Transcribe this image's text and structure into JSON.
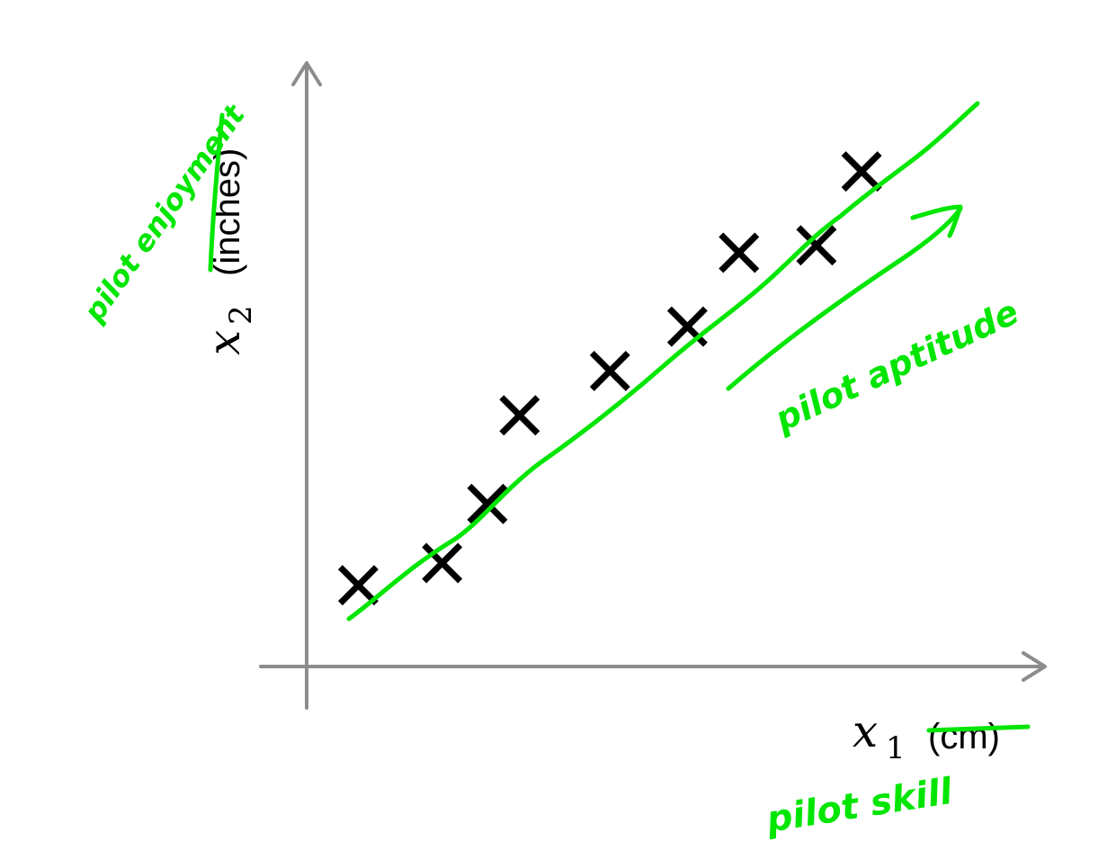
{
  "chart_data": {
    "type": "scatter",
    "title": "",
    "xlabel": {
      "var": "x",
      "sub": "1",
      "unit": "(cm)"
    },
    "ylabel": {
      "var": "x",
      "sub": "2",
      "unit": "(inches)"
    },
    "marker": "x",
    "grid": false,
    "legend": "none",
    "points": [
      {
        "x": 0.8,
        "y": 1.0
      },
      {
        "x": 2.1,
        "y": 1.3
      },
      {
        "x": 2.8,
        "y": 2.1
      },
      {
        "x": 3.3,
        "y": 3.3
      },
      {
        "x": 4.7,
        "y": 3.9
      },
      {
        "x": 5.9,
        "y": 4.5
      },
      {
        "x": 6.7,
        "y": 5.5
      },
      {
        "x": 7.9,
        "y": 5.6
      },
      {
        "x": 8.6,
        "y": 6.6
      }
    ],
    "xlim": [
      0,
      10.5
    ],
    "ylim": [
      -0.1,
      7.8
    ],
    "annotations": {
      "x_axis": "pilot skill",
      "y_axis": "pilot enjoyment",
      "direction": "pilot aptitude"
    },
    "colors": {
      "axis": "#8c8c8c",
      "marker": "#000000",
      "ink": "#00e600"
    }
  }
}
